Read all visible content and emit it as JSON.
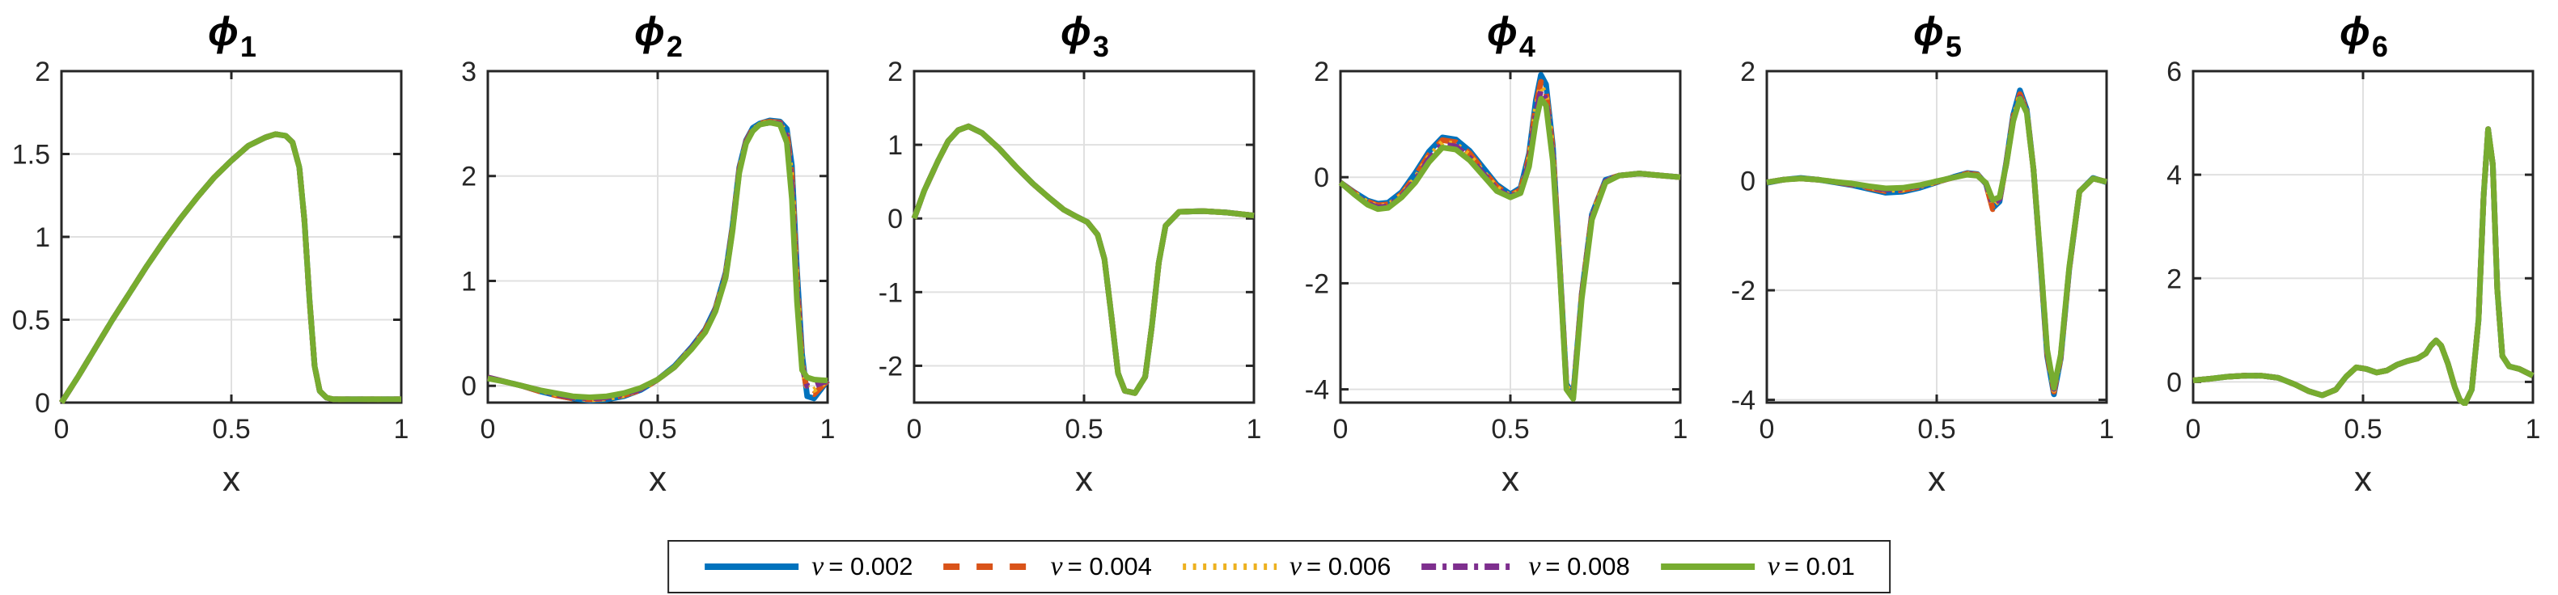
{
  "figure": {
    "background": "#ffffff",
    "axis_color": "#262626",
    "grid_color": "#e0e0e0",
    "box_line_width": 3,
    "curve_line_width": 7
  },
  "legend": {
    "position": "south-outside-centered",
    "border_color": "#262626",
    "items": [
      {
        "symbol": "ν",
        "text": "= 0.002",
        "label": "ν = 0.002",
        "color": "#0072BD",
        "style": "solid"
      },
      {
        "symbol": "ν",
        "text": "= 0.004",
        "label": "ν = 0.004",
        "color": "#D95319",
        "style": "dashed"
      },
      {
        "symbol": "ν",
        "text": "= 0.006",
        "label": "ν = 0.006",
        "color": "#EDB120",
        "style": "dotted"
      },
      {
        "symbol": "ν",
        "text": "= 0.008",
        "label": "ν = 0.008",
        "color": "#7E2F8E",
        "style": "dashdot"
      },
      {
        "symbol": "ν",
        "text": "= 0.01",
        "label": "ν = 0.01",
        "color": "#77AC30",
        "style": "solid"
      }
    ]
  },
  "chart_data": [
    {
      "type": "line",
      "title": {
        "symbol": "ϕ",
        "subscript": "1"
      },
      "xlabel": "x",
      "xlim": [
        0,
        1
      ],
      "ylim": [
        0,
        2
      ],
      "xticks": [
        0,
        0.5,
        1
      ],
      "xtick_labels": [
        "0",
        "0.5",
        "1"
      ],
      "yticks": [
        0,
        0.5,
        1,
        1.5,
        2
      ],
      "ytick_labels": [
        "0",
        "0.5",
        "1",
        "1.5",
        "2"
      ],
      "grid": true,
      "x": [
        0,
        0.05,
        0.1,
        0.15,
        0.2,
        0.25,
        0.3,
        0.35,
        0.4,
        0.45,
        0.5,
        0.55,
        0.6,
        0.63,
        0.66,
        0.68,
        0.7,
        0.715,
        0.73,
        0.745,
        0.76,
        0.78,
        0.8,
        0.9,
        1
      ],
      "values_shared": [
        0,
        0.16,
        0.33,
        0.5,
        0.66,
        0.82,
        0.97,
        1.11,
        1.24,
        1.36,
        1.46,
        1.55,
        1.6,
        1.62,
        1.61,
        1.57,
        1.42,
        1.1,
        0.62,
        0.22,
        0.07,
        0.03,
        0.02,
        0.02,
        0.02
      ],
      "series": [
        {
          "name": "ν = 0.002"
        },
        {
          "name": "ν = 0.004"
        },
        {
          "name": "ν = 0.006"
        },
        {
          "name": "ν = 0.008"
        },
        {
          "name": "ν = 0.01"
        }
      ]
    },
    {
      "type": "line",
      "title": {
        "symbol": "ϕ",
        "subscript": "2"
      },
      "xlabel": "x",
      "xlim": [
        0,
        1
      ],
      "ylim": [
        -0.16,
        3
      ],
      "xticks": [
        0,
        0.5,
        1
      ],
      "xtick_labels": [
        "0",
        "0.5",
        "1"
      ],
      "yticks": [
        0,
        1,
        2,
        3
      ],
      "ytick_labels": [
        "0",
        "1",
        "2",
        "3"
      ],
      "grid": true,
      "x": [
        0,
        0.05,
        0.1,
        0.15,
        0.2,
        0.25,
        0.3,
        0.35,
        0.4,
        0.45,
        0.5,
        0.55,
        0.6,
        0.64,
        0.67,
        0.7,
        0.72,
        0.74,
        0.76,
        0.78,
        0.8,
        0.83,
        0.86,
        0.88,
        0.895,
        0.91,
        0.925,
        0.94,
        0.96,
        1
      ],
      "series": [
        {
          "name": "ν = 0.002",
          "values": [
            0.08,
            0.04,
            0.0,
            -0.05,
            -0.09,
            -0.12,
            -0.14,
            -0.13,
            -0.1,
            -0.04,
            0.06,
            0.19,
            0.37,
            0.54,
            0.74,
            1.08,
            1.52,
            2.08,
            2.34,
            2.46,
            2.5,
            2.53,
            2.52,
            2.45,
            2.1,
            1.1,
            0.3,
            -0.1,
            -0.12,
            0.05
          ]
        },
        {
          "name": "ν = 0.004",
          "values": [
            0.08,
            0.04,
            0.0,
            -0.05,
            -0.09,
            -0.12,
            -0.13,
            -0.12,
            -0.09,
            -0.04,
            0.06,
            0.18,
            0.36,
            0.53,
            0.73,
            1.06,
            1.5,
            2.06,
            2.33,
            2.45,
            2.5,
            2.52,
            2.51,
            2.42,
            2.0,
            1.0,
            0.22,
            -0.06,
            -0.08,
            0.05
          ]
        },
        {
          "name": "ν = 0.006",
          "values": [
            0.08,
            0.04,
            0.0,
            -0.04,
            -0.08,
            -0.11,
            -0.13,
            -0.12,
            -0.09,
            -0.03,
            0.06,
            0.18,
            0.36,
            0.52,
            0.72,
            1.05,
            1.49,
            2.05,
            2.32,
            2.44,
            2.49,
            2.52,
            2.5,
            2.4,
            1.95,
            0.95,
            0.2,
            -0.02,
            -0.04,
            0.05
          ]
        },
        {
          "name": "ν = 0.008",
          "values": [
            0.08,
            0.04,
            0.0,
            -0.04,
            -0.08,
            -0.11,
            -0.12,
            -0.11,
            -0.08,
            -0.03,
            0.06,
            0.18,
            0.36,
            0.52,
            0.72,
            1.04,
            1.48,
            2.04,
            2.32,
            2.44,
            2.49,
            2.51,
            2.5,
            2.38,
            1.9,
            0.9,
            0.18,
            0.0,
            0.0,
            0.05
          ]
        },
        {
          "name": "ν = 0.01",
          "values": [
            0.07,
            0.04,
            0.0,
            -0.04,
            -0.07,
            -0.1,
            -0.11,
            -0.1,
            -0.07,
            -0.02,
            0.06,
            0.18,
            0.35,
            0.51,
            0.71,
            1.03,
            1.47,
            2.03,
            2.31,
            2.43,
            2.49,
            2.51,
            2.49,
            2.32,
            1.78,
            0.8,
            0.15,
            0.08,
            0.06,
            0.05
          ]
        }
      ]
    },
    {
      "type": "line",
      "title": {
        "symbol": "ϕ",
        "subscript": "3"
      },
      "xlabel": "x",
      "xlim": [
        0,
        1
      ],
      "ylim": [
        -2.5,
        2
      ],
      "xticks": [
        0,
        0.5,
        1
      ],
      "xtick_labels": [
        "0",
        "0.5",
        "1"
      ],
      "yticks": [
        -2,
        -1,
        0,
        1,
        2
      ],
      "ytick_labels": [
        "-2",
        "-1",
        "0",
        "1",
        "2"
      ],
      "grid": true,
      "x": [
        0,
        0.03,
        0.07,
        0.1,
        0.13,
        0.16,
        0.2,
        0.25,
        0.3,
        0.35,
        0.4,
        0.44,
        0.48,
        0.51,
        0.54,
        0.56,
        0.58,
        0.6,
        0.62,
        0.65,
        0.68,
        0.7,
        0.72,
        0.74,
        0.78,
        0.85,
        0.92,
        1
      ],
      "values_shared": [
        0,
        0.38,
        0.78,
        1.05,
        1.2,
        1.25,
        1.16,
        0.95,
        0.7,
        0.47,
        0.27,
        0.12,
        0.02,
        -0.05,
        -0.22,
        -0.55,
        -1.3,
        -2.1,
        -2.34,
        -2.37,
        -2.15,
        -1.45,
        -0.6,
        -0.1,
        0.09,
        0.1,
        0.08,
        0.04
      ],
      "series": [
        {
          "name": "ν = 0.002"
        },
        {
          "name": "ν = 0.004"
        },
        {
          "name": "ν = 0.006"
        },
        {
          "name": "ν = 0.008"
        },
        {
          "name": "ν = 0.01"
        }
      ]
    },
    {
      "type": "line",
      "title": {
        "symbol": "ϕ",
        "subscript": "4"
      },
      "xlabel": "x",
      "xlim": [
        0,
        1
      ],
      "ylim": [
        -4.25,
        2
      ],
      "xticks": [
        0,
        0.5,
        1
      ],
      "xtick_labels": [
        "0",
        "0.5",
        "1"
      ],
      "yticks": [
        -4,
        -2,
        0,
        2
      ],
      "ytick_labels": [
        "-4",
        "-2",
        "0",
        "2"
      ],
      "grid": true,
      "x": [
        0,
        0.04,
        0.08,
        0.11,
        0.14,
        0.18,
        0.22,
        0.26,
        0.3,
        0.34,
        0.38,
        0.42,
        0.46,
        0.5,
        0.53,
        0.555,
        0.575,
        0.59,
        0.605,
        0.625,
        0.645,
        0.665,
        0.685,
        0.71,
        0.74,
        0.78,
        0.82,
        0.88,
        0.93,
        1
      ],
      "series": [
        {
          "name": "ν = 0.002",
          "values": [
            -0.1,
            -0.28,
            -0.44,
            -0.5,
            -0.48,
            -0.28,
            0.08,
            0.48,
            0.75,
            0.71,
            0.5,
            0.18,
            -0.14,
            -0.32,
            -0.2,
            0.45,
            1.45,
            1.93,
            1.75,
            0.6,
            -1.6,
            -3.9,
            -4.1,
            -2.2,
            -0.7,
            -0.05,
            0.03,
            0.07,
            0.04,
            0.0
          ]
        },
        {
          "name": "ν = 0.004",
          "values": [
            -0.1,
            -0.29,
            -0.46,
            -0.53,
            -0.51,
            -0.32,
            0.02,
            0.42,
            0.7,
            0.66,
            0.45,
            0.13,
            -0.18,
            -0.34,
            -0.24,
            0.38,
            1.35,
            1.8,
            1.62,
            0.52,
            -1.62,
            -3.92,
            -4.12,
            -2.22,
            -0.72,
            -0.06,
            0.03,
            0.07,
            0.04,
            0.0
          ]
        },
        {
          "name": "ν = 0.006",
          "values": [
            -0.1,
            -0.3,
            -0.48,
            -0.55,
            -0.53,
            -0.34,
            -0.02,
            0.38,
            0.66,
            0.62,
            0.41,
            0.1,
            -0.2,
            -0.35,
            -0.26,
            0.33,
            1.28,
            1.72,
            1.55,
            0.46,
            -1.64,
            -3.94,
            -4.13,
            -2.24,
            -0.74,
            -0.07,
            0.03,
            0.07,
            0.04,
            0.0
          ]
        },
        {
          "name": "ν = 0.008",
          "values": [
            -0.1,
            -0.31,
            -0.5,
            -0.57,
            -0.55,
            -0.36,
            -0.06,
            0.34,
            0.62,
            0.58,
            0.37,
            0.07,
            -0.23,
            -0.37,
            -0.28,
            0.28,
            1.2,
            1.64,
            1.47,
            0.4,
            -1.66,
            -3.96,
            -4.14,
            -2.26,
            -0.76,
            -0.08,
            0.03,
            0.07,
            0.04,
            0.0
          ]
        },
        {
          "name": "ν = 0.01",
          "values": [
            -0.1,
            -0.32,
            -0.52,
            -0.6,
            -0.58,
            -0.38,
            -0.1,
            0.28,
            0.56,
            0.52,
            0.32,
            0.03,
            -0.26,
            -0.38,
            -0.3,
            0.2,
            1.05,
            1.48,
            1.35,
            0.3,
            -1.7,
            -4.0,
            -4.18,
            -2.3,
            -0.8,
            -0.1,
            0.03,
            0.07,
            0.04,
            0.0
          ]
        }
      ]
    },
    {
      "type": "line",
      "title": {
        "symbol": "ϕ",
        "subscript": "5"
      },
      "xlabel": "x",
      "xlim": [
        0,
        1
      ],
      "ylim": [
        -4.05,
        2
      ],
      "xticks": [
        0,
        0.5,
        1
      ],
      "xtick_labels": [
        "0",
        "0.5",
        "1"
      ],
      "yticks": [
        -4,
        -2,
        0,
        2
      ],
      "ytick_labels": [
        "-4",
        "-2",
        "0",
        "2"
      ],
      "grid": true,
      "x": [
        0,
        0.05,
        0.1,
        0.15,
        0.2,
        0.25,
        0.3,
        0.35,
        0.4,
        0.45,
        0.5,
        0.55,
        0.59,
        0.62,
        0.645,
        0.665,
        0.685,
        0.705,
        0.725,
        0.745,
        0.765,
        0.785,
        0.805,
        0.825,
        0.845,
        0.865,
        0.89,
        0.92,
        0.96,
        1
      ],
      "series": [
        {
          "name": "ν = 0.002",
          "values": [
            -0.04,
            0.02,
            0.05,
            0.02,
            -0.03,
            -0.08,
            -0.15,
            -0.22,
            -0.2,
            -0.13,
            -0.03,
            0.07,
            0.14,
            0.12,
            -0.06,
            -0.5,
            -0.38,
            0.35,
            1.2,
            1.65,
            1.3,
            0.2,
            -1.45,
            -3.2,
            -3.9,
            -3.25,
            -1.62,
            -0.2,
            0.05,
            -0.03
          ]
        },
        {
          "name": "ν = 0.004",
          "values": [
            -0.03,
            0.02,
            0.04,
            0.02,
            -0.02,
            -0.07,
            -0.13,
            -0.19,
            -0.17,
            -0.11,
            -0.02,
            0.06,
            0.13,
            0.11,
            -0.06,
            -0.52,
            -0.36,
            0.33,
            1.15,
            1.58,
            1.27,
            0.2,
            -1.42,
            -3.15,
            -3.85,
            -3.22,
            -1.61,
            -0.2,
            0.04,
            -0.02
          ]
        },
        {
          "name": "ν = 0.006",
          "values": [
            -0.03,
            0.02,
            0.04,
            0.02,
            -0.02,
            -0.06,
            -0.12,
            -0.17,
            -0.16,
            -0.1,
            -0.02,
            0.06,
            0.12,
            0.1,
            -0.05,
            -0.46,
            -0.34,
            0.32,
            1.12,
            1.55,
            1.26,
            0.2,
            -1.41,
            -3.12,
            -3.82,
            -3.21,
            -1.6,
            -0.2,
            0.04,
            -0.02
          ]
        },
        {
          "name": "ν = 0.008",
          "values": [
            -0.03,
            0.02,
            0.04,
            0.02,
            -0.02,
            -0.06,
            -0.11,
            -0.16,
            -0.15,
            -0.09,
            -0.01,
            0.06,
            0.12,
            0.1,
            -0.05,
            -0.44,
            -0.33,
            0.31,
            1.1,
            1.52,
            1.25,
            0.2,
            -1.4,
            -3.1,
            -3.8,
            -3.2,
            -1.6,
            -0.2,
            0.04,
            -0.02
          ]
        },
        {
          "name": "ν = 0.01",
          "values": [
            -0.03,
            0.02,
            0.04,
            0.02,
            -0.02,
            -0.05,
            -0.1,
            -0.14,
            -0.13,
            -0.08,
            -0.01,
            0.06,
            0.11,
            0.09,
            -0.04,
            -0.35,
            -0.3,
            0.3,
            1.08,
            1.5,
            1.24,
            0.2,
            -1.38,
            -3.08,
            -3.78,
            -3.18,
            -1.58,
            -0.2,
            0.04,
            -0.02
          ]
        }
      ]
    },
    {
      "type": "line",
      "title": {
        "symbol": "ϕ",
        "subscript": "6"
      },
      "xlabel": "x",
      "xlim": [
        0,
        1
      ],
      "ylim": [
        -0.4,
        6
      ],
      "xticks": [
        0,
        0.5,
        1
      ],
      "xtick_labels": [
        "0",
        "0.5",
        "1"
      ],
      "yticks": [
        0,
        2,
        4,
        6
      ],
      "ytick_labels": [
        "0",
        "2",
        "4",
        "6"
      ],
      "grid": true,
      "x": [
        0,
        0.05,
        0.1,
        0.15,
        0.2,
        0.25,
        0.3,
        0.34,
        0.38,
        0.42,
        0.45,
        0.48,
        0.51,
        0.54,
        0.57,
        0.6,
        0.63,
        0.66,
        0.685,
        0.7,
        0.715,
        0.73,
        0.75,
        0.77,
        0.785,
        0.8,
        0.82,
        0.84,
        0.855,
        0.868,
        0.882,
        0.895,
        0.91,
        0.93,
        0.96,
        1
      ],
      "values_shared": [
        0.03,
        0.06,
        0.1,
        0.12,
        0.12,
        0.08,
        -0.05,
        -0.18,
        -0.26,
        -0.15,
        0.1,
        0.28,
        0.25,
        0.18,
        0.22,
        0.33,
        0.4,
        0.45,
        0.55,
        0.7,
        0.8,
        0.7,
        0.35,
        -0.1,
        -0.35,
        -0.42,
        -0.15,
        1.2,
        3.6,
        4.88,
        4.2,
        1.8,
        0.5,
        0.3,
        0.25,
        0.12
      ],
      "series": [
        {
          "name": "ν = 0.002"
        },
        {
          "name": "ν = 0.004"
        },
        {
          "name": "ν = 0.006"
        },
        {
          "name": "ν = 0.008"
        },
        {
          "name": "ν = 0.01"
        }
      ]
    }
  ]
}
